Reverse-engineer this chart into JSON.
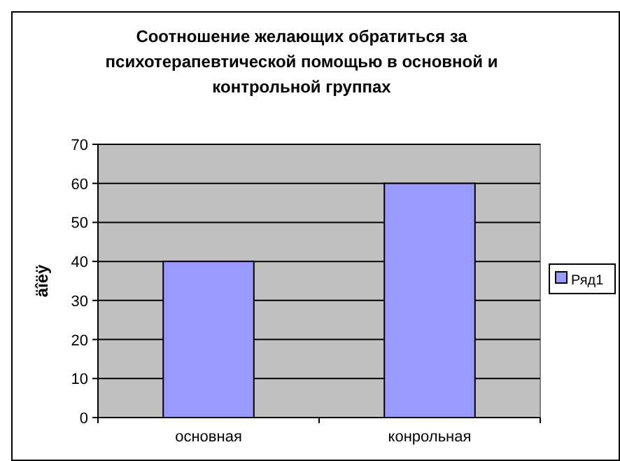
{
  "chart_data": {
    "type": "bar",
    "title": "Соотношение желающих обратиться за психотерапевтической помощью в основной и контрольной группах",
    "ylabel": "äîëÿ",
    "categories": [
      "основная",
      "конрольная"
    ],
    "series": [
      {
        "name": "Ряд1",
        "color": "#9999ff",
        "values": [
          40,
          60
        ]
      }
    ],
    "ylim": [
      0,
      70
    ],
    "yticks": [
      0,
      10,
      20,
      30,
      40,
      50,
      60,
      70
    ],
    "grid": "y",
    "legend": "right"
  }
}
